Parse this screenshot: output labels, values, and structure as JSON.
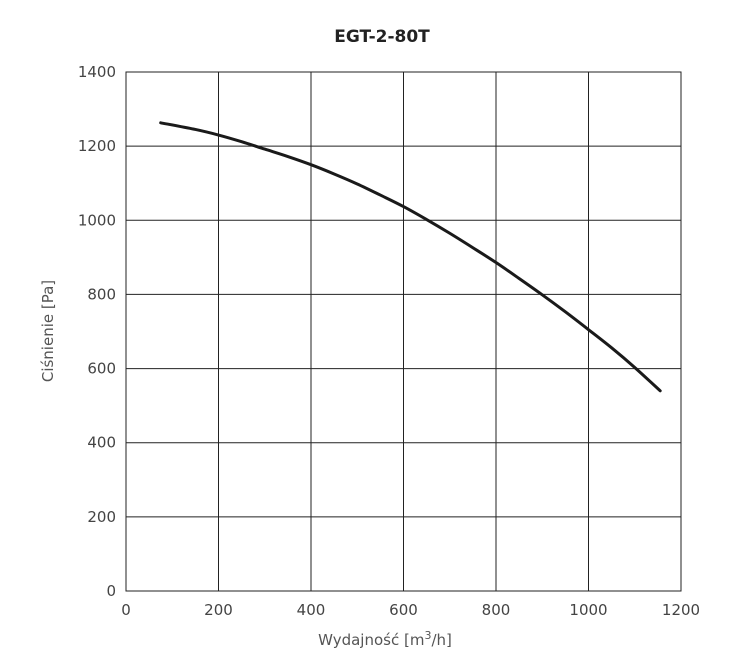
{
  "chart_data": {
    "type": "line",
    "title": "EGT-2-80T",
    "xlabel_base": "Wydajność [m",
    "xlabel_sup": "3",
    "xlabel_tail": "/h]",
    "ylabel": "Ciśnienie [Pa]",
    "xlim": [
      0,
      1200
    ],
    "ylim": [
      0,
      1400
    ],
    "x_ticks": [
      "0",
      "200",
      "400",
      "600",
      "800",
      "1000",
      "1200"
    ],
    "y_ticks": [
      "0",
      "200",
      "400",
      "600",
      "800",
      "1000",
      "1200",
      "1400"
    ],
    "grid": true,
    "series": [
      {
        "color": "#1a1a1a",
        "points": [
          [
            75,
            1263
          ],
          [
            150,
            1245
          ],
          [
            200,
            1230
          ],
          [
            250,
            1212
          ],
          [
            300,
            1192
          ],
          [
            350,
            1172
          ],
          [
            400,
            1150
          ],
          [
            450,
            1125
          ],
          [
            500,
            1098
          ],
          [
            550,
            1068
          ],
          [
            600,
            1037
          ],
          [
            650,
            1002
          ],
          [
            700,
            965
          ],
          [
            750,
            926
          ],
          [
            800,
            886
          ],
          [
            850,
            843
          ],
          [
            900,
            799
          ],
          [
            950,
            753
          ],
          [
            1000,
            705
          ],
          [
            1050,
            656
          ],
          [
            1100,
            603
          ],
          [
            1155,
            540
          ]
        ]
      }
    ]
  }
}
